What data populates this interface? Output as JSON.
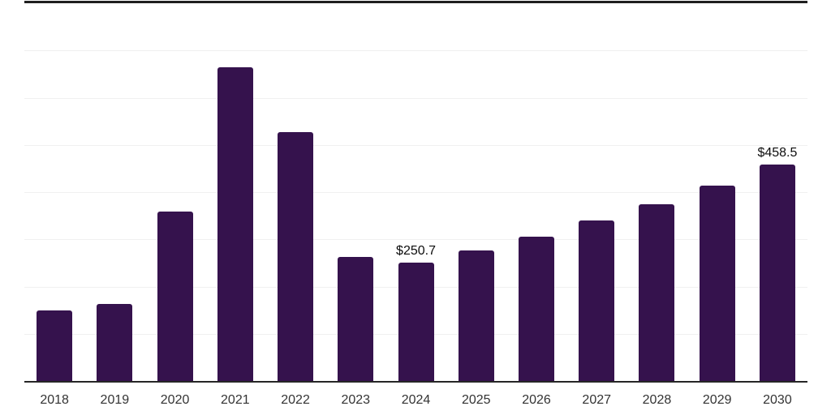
{
  "chart_data": {
    "type": "bar",
    "title": "",
    "xlabel": "",
    "ylabel": "",
    "categories": [
      "2018",
      "2019",
      "2020",
      "2021",
      "2022",
      "2023",
      "2024",
      "2025",
      "2026",
      "2027",
      "2028",
      "2029",
      "2030"
    ],
    "values": [
      150.0,
      162.9,
      359.5,
      664.6,
      527.3,
      263.0,
      250.7,
      276.4,
      305.7,
      339.1,
      374.8,
      413.7,
      458.5
    ],
    "value_labels": [
      "",
      "",
      "",
      "",
      "",
      "",
      "$250.7",
      "",
      "",
      "",
      "",
      "",
      "$458.5"
    ],
    "ylim": [
      0,
      800
    ],
    "gridline_values": [
      100,
      200,
      300,
      400,
      500,
      600,
      700
    ],
    "grid": "horizontal-only",
    "legend": "none",
    "axis_tick_labels_y": "none",
    "colors": {
      "bar": "#35124d",
      "top_rule": "#1f1f1f",
      "axis_line": "#262626",
      "gridline": "#f0f0f0",
      "tick_label": "#333333",
      "value_label": "#0d0d0d",
      "background": "#ffffff"
    }
  }
}
